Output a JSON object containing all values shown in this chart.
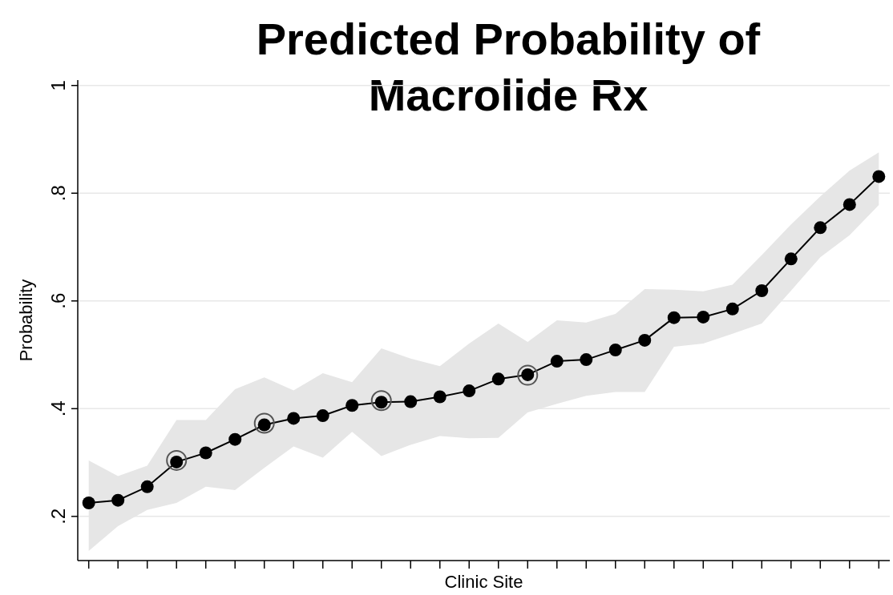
{
  "chart_data": {
    "type": "line",
    "title": "Predicted Probability of\nMacrolide Rx",
    "xlabel": "Clinic Site",
    "ylabel": "Probability",
    "categories": [
      null,
      null,
      null,
      null,
      null,
      null,
      null,
      null,
      null,
      null,
      null,
      null,
      null,
      null,
      null,
      null,
      null,
      null,
      null,
      null,
      null,
      null,
      null,
      null,
      null,
      null,
      null,
      null
    ],
    "series": [
      {
        "color": "#000000",
        "marker": "circle",
        "values": [
          0.225,
          0.23,
          0.255,
          0.301,
          0.318,
          0.343,
          0.37,
          0.382,
          0.387,
          0.406,
          0.412,
          0.413,
          0.422,
          0.433,
          0.455,
          0.463,
          0.488,
          0.491,
          0.509,
          0.527,
          0.569,
          0.57,
          0.585,
          0.619,
          0.678,
          0.736,
          0.779,
          0.831
        ],
        "lower": [
          0.136,
          0.182,
          0.212,
          0.225,
          0.255,
          0.249,
          0.29,
          0.33,
          0.309,
          0.357,
          0.312,
          0.333,
          0.349,
          0.345,
          0.346,
          0.393,
          0.409,
          0.424,
          0.431,
          0.431,
          0.515,
          0.521,
          0.539,
          0.558,
          0.619,
          0.681,
          0.722,
          0.778
        ],
        "upper": [
          0.304,
          0.275,
          0.294,
          0.379,
          0.379,
          0.436,
          0.458,
          0.434,
          0.466,
          0.449,
          0.512,
          0.493,
          0.479,
          0.521,
          0.558,
          0.524,
          0.564,
          0.56,
          0.576,
          0.622,
          0.621,
          0.618,
          0.63,
          0.685,
          0.742,
          0.794,
          0.842,
          0.876
        ]
      },
      {
        "type": "scatter",
        "color": "#555555",
        "marker": "circle",
        "values": [
          null,
          null,
          null,
          0.304,
          null,
          null,
          0.373,
          null,
          null,
          null,
          0.415,
          null,
          null,
          null,
          null,
          0.462,
          null,
          null,
          null,
          null,
          null,
          null,
          null,
          null,
          null,
          null,
          null,
          null
        ]
      }
    ],
    "ylim": [
      0.118,
      1.01
    ],
    "yticks": [
      {
        "value": 0.2,
        "label": ".2"
      },
      {
        "value": 0.4,
        "label": ".4"
      },
      {
        "value": 0.6,
        "label": ".6"
      },
      {
        "value": 0.8,
        "label": ".8"
      },
      {
        "value": 1,
        "label": "1"
      }
    ],
    "grid": "y",
    "tick_labels": "y"
  }
}
